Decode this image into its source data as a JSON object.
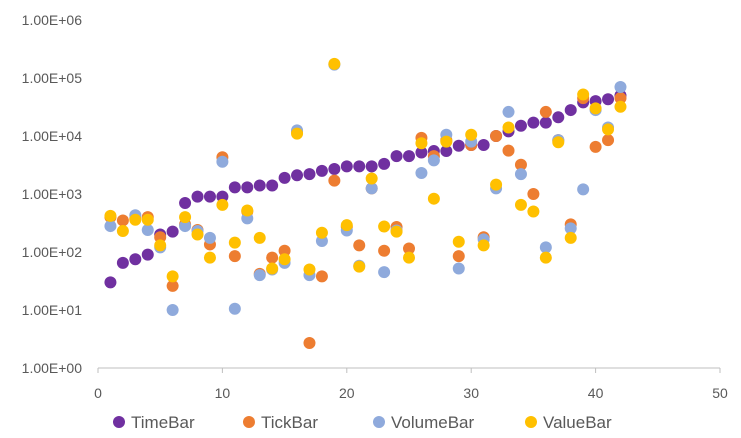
{
  "chart_data": {
    "type": "scatter",
    "title": "",
    "xlabel": "",
    "ylabel": "",
    "xlim": [
      0,
      50
    ],
    "x_ticks": [
      0,
      10,
      20,
      30,
      40,
      50
    ],
    "y_scale": "log",
    "ylim": [
      1,
      1000000
    ],
    "y_ticks": [
      1,
      10,
      100,
      1000,
      10000,
      100000,
      1000000
    ],
    "y_tick_labels": [
      "1.00E+00",
      "1.00E+01",
      "1.00E+02",
      "1.00E+03",
      "1.00E+04",
      "1.00E+05",
      "1.00E+06"
    ],
    "grid": false,
    "legend_position": "bottom",
    "series": [
      {
        "name": "TimeBar",
        "color": "#7030A0",
        "points": [
          [
            1,
            30
          ],
          [
            2,
            65
          ],
          [
            3,
            75
          ],
          [
            4,
            90
          ],
          [
            5,
            200
          ],
          [
            6,
            225
          ],
          [
            7,
            700
          ],
          [
            8,
            900
          ],
          [
            9,
            900
          ],
          [
            10,
            900
          ],
          [
            11,
            1300
          ],
          [
            12,
            1300
          ],
          [
            13,
            1400
          ],
          [
            14,
            1400
          ],
          [
            15,
            1900
          ],
          [
            16,
            2100
          ],
          [
            17,
            2200
          ],
          [
            18,
            2500
          ],
          [
            19,
            2700
          ],
          [
            20,
            3000
          ],
          [
            21,
            3000
          ],
          [
            22,
            3000
          ],
          [
            23,
            3300
          ],
          [
            24,
            4500
          ],
          [
            25,
            4500
          ],
          [
            26,
            5200
          ],
          [
            27,
            5500
          ],
          [
            28,
            5500
          ],
          [
            29,
            6800
          ],
          [
            30,
            7000
          ],
          [
            31,
            7000
          ],
          [
            32,
            10000
          ],
          [
            33,
            12000
          ],
          [
            34,
            15000
          ],
          [
            35,
            17000
          ],
          [
            36,
            17000
          ],
          [
            37,
            21000
          ],
          [
            38,
            28000
          ],
          [
            39,
            38000
          ],
          [
            40,
            40000
          ],
          [
            41,
            43000
          ],
          [
            42,
            50000
          ]
        ]
      },
      {
        "name": "TickBar",
        "color": "#ED7D31",
        "points": [
          [
            1,
            400
          ],
          [
            2,
            350
          ],
          [
            3,
            380
          ],
          [
            4,
            400
          ],
          [
            5,
            180
          ],
          [
            6,
            26
          ],
          [
            7,
            300
          ],
          [
            8,
            240
          ],
          [
            9,
            135
          ],
          [
            10,
            4300
          ],
          [
            11,
            85
          ],
          [
            12,
            500
          ],
          [
            13,
            42
          ],
          [
            14,
            80
          ],
          [
            15,
            105
          ],
          [
            16,
            12000
          ],
          [
            17,
            2.7
          ],
          [
            18,
            38
          ],
          [
            19,
            1700
          ],
          [
            20,
            270
          ],
          [
            21,
            130
          ],
          [
            22,
            1250
          ],
          [
            23,
            105
          ],
          [
            24,
            270
          ],
          [
            25,
            115
          ],
          [
            26,
            9300
          ],
          [
            27,
            4500
          ],
          [
            28,
            8500
          ],
          [
            29,
            85
          ],
          [
            30,
            7000
          ],
          [
            31,
            180
          ],
          [
            32,
            10000
          ],
          [
            33,
            5600
          ],
          [
            34,
            3200
          ],
          [
            35,
            1000
          ],
          [
            36,
            26000
          ],
          [
            37,
            8500
          ],
          [
            38,
            300
          ],
          [
            39,
            45000
          ],
          [
            40,
            6500
          ],
          [
            41,
            8500
          ],
          [
            42,
            45000
          ]
        ]
      },
      {
        "name": "VolumeBar",
        "color": "#8FAADC",
        "points": [
          [
            1,
            280
          ],
          [
            3,
            430
          ],
          [
            4,
            240
          ],
          [
            5,
            120
          ],
          [
            6,
            10
          ],
          [
            7,
            280
          ],
          [
            8,
            230
          ],
          [
            9,
            175
          ],
          [
            10,
            3600
          ],
          [
            11,
            10.5
          ],
          [
            12,
            380
          ],
          [
            13,
            40
          ],
          [
            14,
            50
          ],
          [
            15,
            65
          ],
          [
            16,
            12500
          ],
          [
            17,
            40
          ],
          [
            18,
            155
          ],
          [
            19,
            170000
          ],
          [
            20,
            235
          ],
          [
            21,
            58
          ],
          [
            22,
            1250
          ],
          [
            23,
            45
          ],
          [
            24,
            235
          ],
          [
            26,
            2300
          ],
          [
            27,
            3800
          ],
          [
            28,
            10500
          ],
          [
            29,
            52
          ],
          [
            30,
            8000
          ],
          [
            31,
            165
          ],
          [
            32,
            1250
          ],
          [
            33,
            26000
          ],
          [
            34,
            2200
          ],
          [
            36,
            120
          ],
          [
            37,
            8500
          ],
          [
            38,
            255
          ],
          [
            39,
            1200
          ],
          [
            40,
            28000
          ],
          [
            41,
            14000
          ],
          [
            42,
            70000
          ]
        ]
      },
      {
        "name": "ValueBar",
        "color": "#FFC000",
        "points": [
          [
            1,
            420
          ],
          [
            2,
            230
          ],
          [
            3,
            360
          ],
          [
            4,
            360
          ],
          [
            5,
            130
          ],
          [
            6,
            38
          ],
          [
            7,
            400
          ],
          [
            8,
            200
          ],
          [
            9,
            80
          ],
          [
            10,
            650
          ],
          [
            11,
            145
          ],
          [
            12,
            520
          ],
          [
            13,
            175
          ],
          [
            14,
            52
          ],
          [
            15,
            75
          ],
          [
            16,
            11000
          ],
          [
            17,
            50
          ],
          [
            18,
            215
          ],
          [
            19,
            175000
          ],
          [
            20,
            290
          ],
          [
            21,
            56
          ],
          [
            22,
            1850
          ],
          [
            23,
            275
          ],
          [
            24,
            225
          ],
          [
            25,
            80
          ],
          [
            26,
            7500
          ],
          [
            27,
            830
          ],
          [
            28,
            8000
          ],
          [
            29,
            150
          ],
          [
            30,
            10500
          ],
          [
            31,
            130
          ],
          [
            32,
            1450
          ],
          [
            33,
            14000
          ],
          [
            34,
            650
          ],
          [
            35,
            500
          ],
          [
            36,
            80
          ],
          [
            37,
            7800
          ],
          [
            38,
            175
          ],
          [
            39,
            52000
          ],
          [
            40,
            30000
          ],
          [
            41,
            13000
          ],
          [
            42,
            32000
          ]
        ]
      }
    ]
  }
}
